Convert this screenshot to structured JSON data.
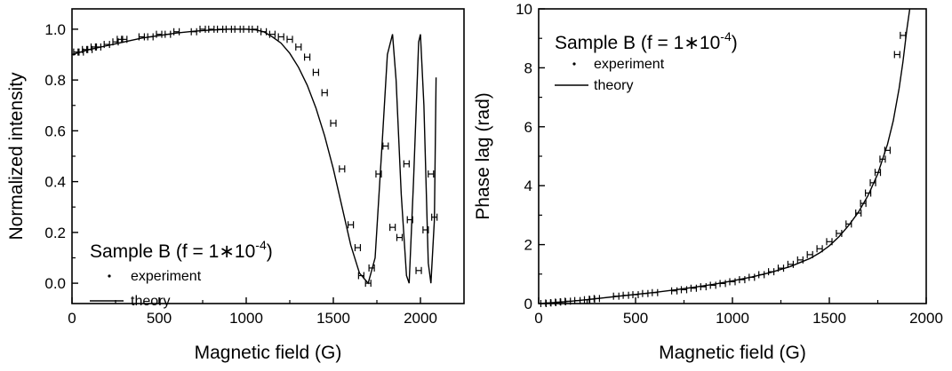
{
  "chart_data": [
    {
      "type": "line",
      "panel": "left",
      "xlabel": "Magnetic field (G)",
      "ylabel": "Normalized intensity",
      "xlim": [
        0,
        2250
      ],
      "ylim": [
        -0.08,
        1.08
      ],
      "xticks": [
        0,
        500,
        1000,
        1500,
        2000
      ],
      "xtick_labels": [
        "0",
        "500",
        "1000",
        "1500",
        "2000"
      ],
      "yticks": [
        0.0,
        0.2,
        0.4,
        0.6,
        0.8,
        1.0
      ],
      "ytick_labels": [
        "0.0",
        "0.2",
        "0.4",
        "0.6",
        "0.8",
        "1.0"
      ],
      "grid": false,
      "legend": {
        "placement": "lower-left",
        "title_main": "Sample B (f = 1∗10",
        "title_exp": "-4",
        "title_end": ")",
        "entries": [
          {
            "label": "experiment",
            "style": "dot"
          },
          {
            "label": "theory",
            "style": "line"
          }
        ]
      },
      "series": [
        {
          "name": "experiment",
          "style": "markers",
          "x": [
            25,
            50,
            75,
            100,
            125,
            150,
            200,
            250,
            275,
            300,
            400,
            450,
            500,
            550,
            600,
            700,
            750,
            800,
            850,
            900,
            950,
            1000,
            1050,
            1100,
            1150,
            1200,
            1250,
            1300,
            1350,
            1400,
            1450,
            1500,
            1550,
            1600,
            1640,
            1660,
            1700,
            1720,
            1760,
            1800,
            1840,
            1880,
            1920,
            1940,
            1990,
            2030,
            2060,
            2080
          ],
          "y": [
            0.91,
            0.91,
            0.92,
            0.92,
            0.93,
            0.93,
            0.94,
            0.95,
            0.96,
            0.96,
            0.97,
            0.97,
            0.98,
            0.98,
            0.99,
            0.99,
            1.0,
            1.0,
            1.0,
            1.0,
            1.0,
            1.0,
            1.0,
            0.99,
            0.98,
            0.97,
            0.96,
            0.93,
            0.89,
            0.83,
            0.75,
            0.63,
            0.45,
            0.23,
            0.14,
            0.03,
            0.0,
            0.06,
            0.43,
            0.54,
            0.22,
            0.18,
            0.47,
            0.25,
            0.05,
            0.21,
            0.43,
            0.26
          ]
        },
        {
          "name": "theory",
          "style": "line",
          "x": [
            0,
            100,
            200,
            300,
            400,
            500,
            600,
            700,
            800,
            900,
            1000,
            1050,
            1100,
            1150,
            1200,
            1250,
            1300,
            1350,
            1400,
            1450,
            1500,
            1550,
            1600,
            1650,
            1700,
            1740,
            1780,
            1810,
            1840,
            1860,
            1890,
            1920,
            1935,
            1960,
            1990,
            2000,
            2020,
            2045,
            2060,
            2080,
            2090
          ],
          "y": [
            0.9,
            0.92,
            0.935,
            0.95,
            0.965,
            0.975,
            0.985,
            0.992,
            0.997,
            1.0,
            1.0,
            0.998,
            0.99,
            0.97,
            0.945,
            0.905,
            0.85,
            0.78,
            0.69,
            0.58,
            0.45,
            0.3,
            0.15,
            0.04,
            0.0,
            0.1,
            0.55,
            0.9,
            0.98,
            0.8,
            0.35,
            0.03,
            0.0,
            0.4,
            0.95,
            0.98,
            0.7,
            0.08,
            0.0,
            0.25,
            0.81
          ]
        }
      ]
    },
    {
      "type": "line",
      "panel": "right",
      "xlabel": "Magnetic field (G)",
      "ylabel": "Phase lag (rad)",
      "xlim": [
        0,
        2000
      ],
      "ylim": [
        0,
        10
      ],
      "xticks": [
        0,
        500,
        1000,
        1500,
        2000
      ],
      "xtick_labels": [
        "0",
        "500",
        "1000",
        "1500",
        "2000"
      ],
      "yticks": [
        0,
        2,
        4,
        6,
        8,
        10
      ],
      "ytick_labels": [
        "0",
        "2",
        "4",
        "6",
        "8",
        "10"
      ],
      "grid": false,
      "legend": {
        "placement": "top-left",
        "title_main": "Sample B (f = 1∗10",
        "title_exp": "-4",
        "title_end": ")",
        "entries": [
          {
            "label": "experiment",
            "style": "dot"
          },
          {
            "label": "theory",
            "style": "line"
          }
        ]
      },
      "series": [
        {
          "name": "experiment",
          "style": "markers",
          "x": [
            25,
            50,
            75,
            100,
            125,
            150,
            200,
            250,
            275,
            300,
            400,
            450,
            500,
            550,
            600,
            700,
            750,
            800,
            850,
            900,
            950,
            1000,
            1050,
            1100,
            1150,
            1200,
            1250,
            1300,
            1350,
            1400,
            1450,
            1500,
            1550,
            1600,
            1650,
            1675,
            1700,
            1725,
            1750,
            1775,
            1800,
            1850,
            1880
          ],
          "y": [
            0.0,
            0.02,
            0.03,
            0.05,
            0.06,
            0.08,
            0.1,
            0.13,
            0.15,
            0.17,
            0.25,
            0.28,
            0.3,
            0.34,
            0.37,
            0.43,
            0.47,
            0.52,
            0.57,
            0.62,
            0.68,
            0.74,
            0.81,
            0.89,
            0.98,
            1.08,
            1.2,
            1.33,
            1.48,
            1.66,
            1.86,
            2.1,
            2.38,
            2.7,
            3.07,
            3.4,
            3.75,
            4.1,
            4.45,
            4.9,
            5.2,
            8.45,
            9.1
          ]
        },
        {
          "name": "theory",
          "style": "line",
          "x": [
            0,
            100,
            200,
            300,
            400,
            500,
            600,
            700,
            800,
            900,
            1000,
            1100,
            1200,
            1300,
            1400,
            1450,
            1500,
            1550,
            1600,
            1650,
            1700,
            1750,
            1800,
            1830,
            1860,
            1880,
            1900,
            1915
          ],
          "y": [
            0.0,
            0.04,
            0.1,
            0.17,
            0.24,
            0.31,
            0.38,
            0.46,
            0.55,
            0.65,
            0.77,
            0.9,
            1.06,
            1.26,
            1.53,
            1.72,
            1.96,
            2.27,
            2.65,
            3.1,
            3.67,
            4.4,
            5.4,
            6.2,
            7.3,
            8.2,
            9.3,
            10.0
          ]
        }
      ]
    }
  ]
}
